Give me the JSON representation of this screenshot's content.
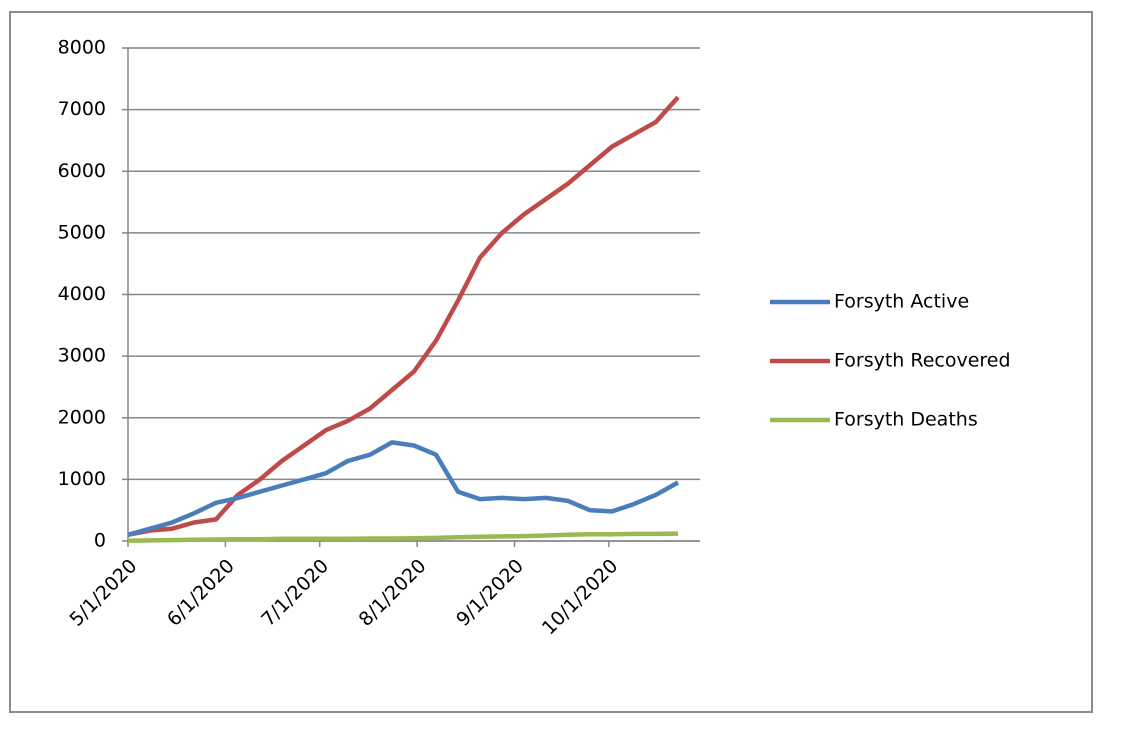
{
  "chart_data": {
    "type": "line",
    "x": [
      "5/1/2020",
      "5/8/2020",
      "5/15/2020",
      "5/22/2020",
      "5/29/2020",
      "6/5/2020",
      "6/12/2020",
      "6/19/2020",
      "6/26/2020",
      "7/3/2020",
      "7/10/2020",
      "7/17/2020",
      "7/24/2020",
      "7/31/2020",
      "8/7/2020",
      "8/14/2020",
      "8/21/2020",
      "8/28/2020",
      "9/4/2020",
      "9/11/2020",
      "9/18/2020",
      "9/25/2020",
      "10/2/2020",
      "10/9/2020",
      "10/16/2020",
      "10/23/2020"
    ],
    "series": [
      {
        "name": "Forsyth Active",
        "color": "#4a7ebb",
        "values": [
          100,
          200,
          300,
          450,
          620,
          700,
          800,
          900,
          1000,
          1100,
          1300,
          1400,
          1600,
          1550,
          1400,
          800,
          680,
          700,
          680,
          700,
          650,
          500,
          480,
          600,
          750,
          950
        ]
      },
      {
        "name": "Forsyth Recovered",
        "color": "#be4b48",
        "values": [
          100,
          170,
          200,
          300,
          350,
          750,
          1000,
          1300,
          1550,
          1800,
          1950,
          2150,
          2450,
          2750,
          3250,
          3900,
          4600,
          5000,
          5300,
          5550,
          5800,
          6100,
          6400,
          6600,
          6800,
          7200
        ]
      },
      {
        "name": "Forsyth Deaths",
        "color": "#98b954",
        "values": [
          5,
          10,
          15,
          20,
          25,
          30,
          30,
          35,
          35,
          35,
          35,
          40,
          40,
          45,
          50,
          60,
          70,
          75,
          80,
          90,
          100,
          110,
          110,
          115,
          115,
          120
        ]
      }
    ],
    "xlim": [
      "5/1/2020",
      "10/30/2020"
    ],
    "xticks": [
      "5/1/2020",
      "6/1/2020",
      "7/1/2020",
      "8/1/2020",
      "9/1/2020",
      "10/1/2020"
    ],
    "ylim": [
      0,
      8000
    ],
    "yticks": [
      0,
      1000,
      2000,
      3000,
      4000,
      5000,
      6000,
      7000,
      8000
    ],
    "grid": true,
    "legend": "right"
  }
}
